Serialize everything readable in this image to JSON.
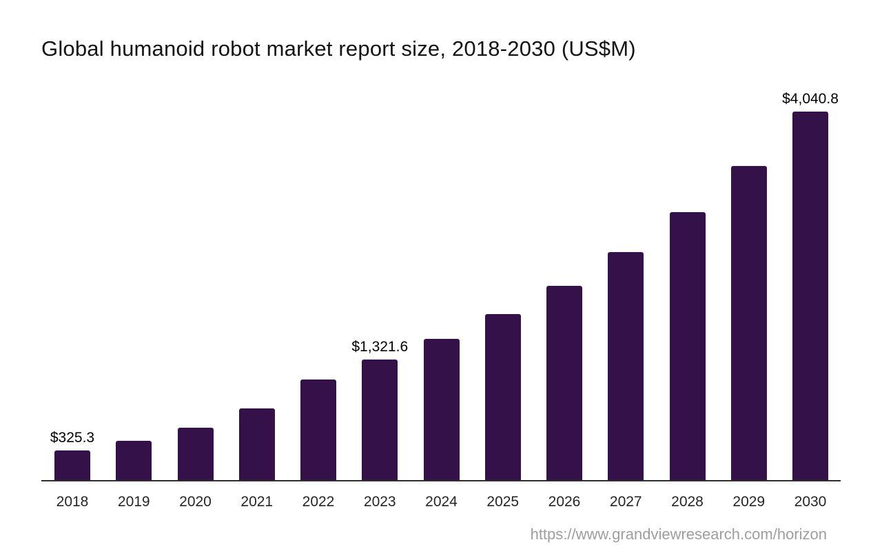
{
  "title": "Global humanoid robot market report size, 2018-2030 (US$M)",
  "footer": {
    "url": "https://www.grandviewresearch.com/horizon"
  },
  "chart_data": {
    "type": "bar",
    "title": "Global humanoid robot market report size, 2018-2030 (US$M)",
    "xlabel": "",
    "ylabel": "US$M",
    "categories": [
      "2018",
      "2019",
      "2020",
      "2021",
      "2022",
      "2023",
      "2024",
      "2025",
      "2026",
      "2027",
      "2028",
      "2029",
      "2030"
    ],
    "values": [
      325.3,
      430,
      575,
      785,
      1100,
      1321.6,
      1550,
      1818,
      2133,
      2502,
      2935,
      3443,
      4040.8
    ],
    "data_labels": [
      "$325.3",
      null,
      null,
      null,
      null,
      "$1,321.6",
      null,
      null,
      null,
      null,
      null,
      null,
      "$4,040.8"
    ],
    "labeled_points_note": "only 2018, 2023 and 2030 carry printed value labels; other values estimated from bar heights",
    "ylim": [
      0,
      4300
    ],
    "grid": false,
    "legend": "none",
    "bar_color": "#351149",
    "axis_line_color": "#2e2e2e",
    "tick_color": "#262626",
    "value_label_color": "#000000"
  }
}
